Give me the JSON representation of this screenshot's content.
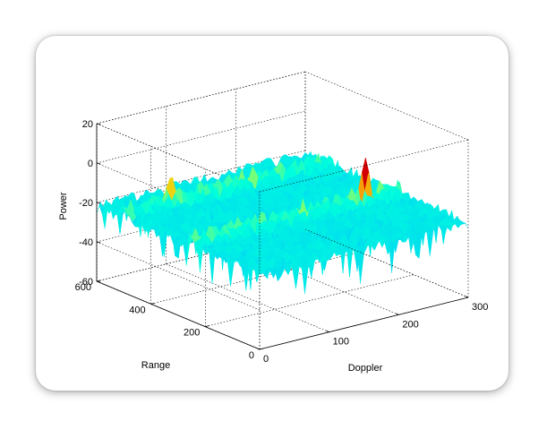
{
  "chart_data": {
    "type": "surface",
    "title": "",
    "xlabel": "Doppler",
    "ylabel": "Range",
    "zlabel": "Power",
    "xlim": [
      0,
      300
    ],
    "ylim": [
      0,
      600
    ],
    "zlim": [
      -60,
      20
    ],
    "x_ticks": [
      "0",
      "100",
      "200",
      "300"
    ],
    "y_ticks": [
      "0",
      "200",
      "400",
      "600"
    ],
    "z_ticks": [
      "-60",
      "-40",
      "-20",
      "0",
      "20"
    ],
    "grid": true,
    "colormap": "jet",
    "noise_floor": -20,
    "peaks": [
      {
        "doppler": 70,
        "range": 500,
        "power": -10
      },
      {
        "doppler": 250,
        "range": 250,
        "power": -2
      }
    ],
    "ridges": [
      {
        "axis": "range",
        "range": 500
      },
      {
        "axis": "range",
        "range": 250
      }
    ]
  },
  "colors": {
    "low": "#00ffff",
    "mid": "#7fff80",
    "high": "#ffff00",
    "peak": "#ff0000"
  }
}
